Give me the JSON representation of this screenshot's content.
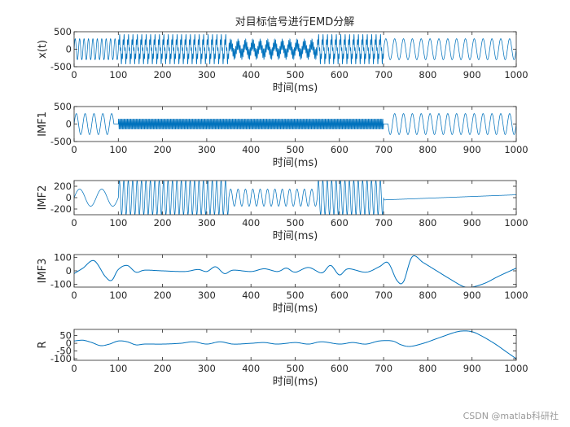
{
  "chart_data": {
    "title": "对目标信号进行EMD分解",
    "type": "line",
    "line_color": "#0072BD",
    "panels": [
      {
        "type": "line",
        "ylabel": "x(t)",
        "xlabel": "时间(ms)",
        "xlim": [
          0,
          1000
        ],
        "ylim": [
          -500,
          500
        ],
        "yticks": [
          -500,
          0,
          500
        ],
        "xticks": [
          0,
          100,
          200,
          300,
          400,
          500,
          600,
          700,
          800,
          900,
          1000
        ],
        "segments": [
          {
            "x_range": [
              0,
              100
            ],
            "components": [
              {
                "amplitude": 300,
                "frequency_khz": 0.1
              }
            ]
          },
          {
            "x_range": [
              100,
              350
            ],
            "components": [
              {
                "amplitude": 300,
                "frequency_khz": 0.1
              },
              {
                "amplitude": 150,
                "frequency_khz": 0.4
              }
            ]
          },
          {
            "x_range": [
              350,
              550
            ],
            "components": [
              {
                "amplitude": 150,
                "frequency_khz": 0.06
              },
              {
                "amplitude": 150,
                "frequency_khz": 0.4
              }
            ]
          },
          {
            "x_range": [
              550,
              700
            ],
            "components": [
              {
                "amplitude": 300,
                "frequency_khz": 0.1
              },
              {
                "amplitude": 150,
                "frequency_khz": 0.4
              }
            ]
          },
          {
            "x_range": [
              700,
              1000
            ],
            "components": [
              {
                "amplitude": 300,
                "frequency_khz": 0.05
              }
            ]
          }
        ]
      },
      {
        "type": "line",
        "ylabel": "IMF1",
        "xlabel": "时间(ms)",
        "xlim": [
          0,
          1000
        ],
        "ylim": [
          -500,
          500
        ],
        "yticks": [
          -500,
          0,
          500
        ],
        "xticks": [
          0,
          100,
          200,
          300,
          400,
          500,
          600,
          700,
          800,
          900,
          1000
        ],
        "segments": [
          {
            "x_range": [
              0,
              90
            ],
            "components": [
              {
                "amplitude": 300,
                "frequency_khz": 0.05
              }
            ]
          },
          {
            "x_range": [
              100,
              700
            ],
            "components": [
              {
                "amplitude": 150,
                "frequency_khz": 0.4
              }
            ]
          },
          {
            "x_range": [
              710,
              1000
            ],
            "components": [
              {
                "amplitude": 300,
                "frequency_khz": 0.05
              }
            ]
          }
        ]
      },
      {
        "type": "line",
        "ylabel": "IMF2",
        "xlabel": "时间(ms)",
        "xlim": [
          0,
          1000
        ],
        "ylim": [
          -300,
          300
        ],
        "yticks": [
          -200,
          0,
          200
        ],
        "xticks": [
          0,
          100,
          200,
          300,
          400,
          500,
          600,
          700,
          800,
          900,
          1000
        ],
        "segments": [
          {
            "x_range": [
              0,
              100
            ],
            "components": [
              {
                "amplitude": 150,
                "frequency_khz": 0.02
              }
            ]
          },
          {
            "x_range": [
              100,
              350
            ],
            "components": [
              {
                "amplitude": 300,
                "frequency_khz": 0.1
              }
            ]
          },
          {
            "x_range": [
              350,
              550
            ],
            "components": [
              {
                "amplitude": 150,
                "frequency_khz": 0.06
              }
            ]
          },
          {
            "x_range": [
              550,
              700
            ],
            "components": [
              {
                "amplitude": 300,
                "frequency_khz": 0.1
              }
            ]
          },
          {
            "x_range": [
              700,
              1000
            ],
            "trend": [
              -40,
              50
            ]
          }
        ]
      },
      {
        "type": "line",
        "ylabel": "IMF3",
        "xlabel": "时间(ms)",
        "xlim": [
          0,
          1000
        ],
        "ylim": [
          -120,
          120
        ],
        "yticks": [
          -100,
          0,
          100
        ],
        "xticks": [
          0,
          100,
          200,
          300,
          400,
          500,
          600,
          700,
          800,
          900,
          1000
        ],
        "points": [
          [
            0,
            -20
          ],
          [
            20,
            20
          ],
          [
            45,
            75
          ],
          [
            70,
            -40
          ],
          [
            85,
            -70
          ],
          [
            100,
            10
          ],
          [
            120,
            40
          ],
          [
            140,
            -10
          ],
          [
            160,
            5
          ],
          [
            200,
            0
          ],
          [
            250,
            -5
          ],
          [
            280,
            10
          ],
          [
            300,
            -5
          ],
          [
            320,
            30
          ],
          [
            340,
            -20
          ],
          [
            360,
            5
          ],
          [
            400,
            -5
          ],
          [
            430,
            15
          ],
          [
            460,
            -5
          ],
          [
            480,
            20
          ],
          [
            500,
            -10
          ],
          [
            530,
            25
          ],
          [
            560,
            -15
          ],
          [
            580,
            40
          ],
          [
            600,
            -30
          ],
          [
            620,
            15
          ],
          [
            660,
            -10
          ],
          [
            690,
            30
          ],
          [
            710,
            60
          ],
          [
            730,
            -70
          ],
          [
            745,
            -80
          ],
          [
            765,
            105
          ],
          [
            790,
            60
          ],
          [
            820,
            0
          ],
          [
            850,
            -60
          ],
          [
            880,
            -115
          ],
          [
            900,
            -120
          ],
          [
            930,
            -90
          ],
          [
            960,
            -40
          ],
          [
            1000,
            20
          ]
        ]
      },
      {
        "type": "line",
        "ylabel": "R",
        "xlabel": "时间(ms)",
        "xlim": [
          0,
          1000
        ],
        "ylim": [
          -110,
          90
        ],
        "yticks": [
          -100,
          -50,
          0,
          50
        ],
        "xticks": [
          0,
          100,
          200,
          300,
          400,
          500,
          600,
          700,
          800,
          900,
          1000
        ],
        "points": [
          [
            0,
            15
          ],
          [
            20,
            20
          ],
          [
            40,
            5
          ],
          [
            60,
            -15
          ],
          [
            80,
            -5
          ],
          [
            100,
            15
          ],
          [
            120,
            10
          ],
          [
            140,
            -10
          ],
          [
            160,
            -5
          ],
          [
            200,
            -5
          ],
          [
            240,
            0
          ],
          [
            270,
            10
          ],
          [
            300,
            -5
          ],
          [
            330,
            10
          ],
          [
            360,
            -5
          ],
          [
            400,
            0
          ],
          [
            430,
            5
          ],
          [
            460,
            -5
          ],
          [
            500,
            5
          ],
          [
            530,
            -5
          ],
          [
            560,
            10
          ],
          [
            600,
            -5
          ],
          [
            630,
            5
          ],
          [
            660,
            -5
          ],
          [
            690,
            15
          ],
          [
            720,
            15
          ],
          [
            740,
            -10
          ],
          [
            760,
            -20
          ],
          [
            790,
            0
          ],
          [
            820,
            30
          ],
          [
            860,
            70
          ],
          [
            880,
            80
          ],
          [
            900,
            75
          ],
          [
            920,
            50
          ],
          [
            950,
            0
          ],
          [
            980,
            -60
          ],
          [
            1000,
            -100
          ]
        ]
      }
    ]
  },
  "watermark": "CSDN @matlab科研社"
}
